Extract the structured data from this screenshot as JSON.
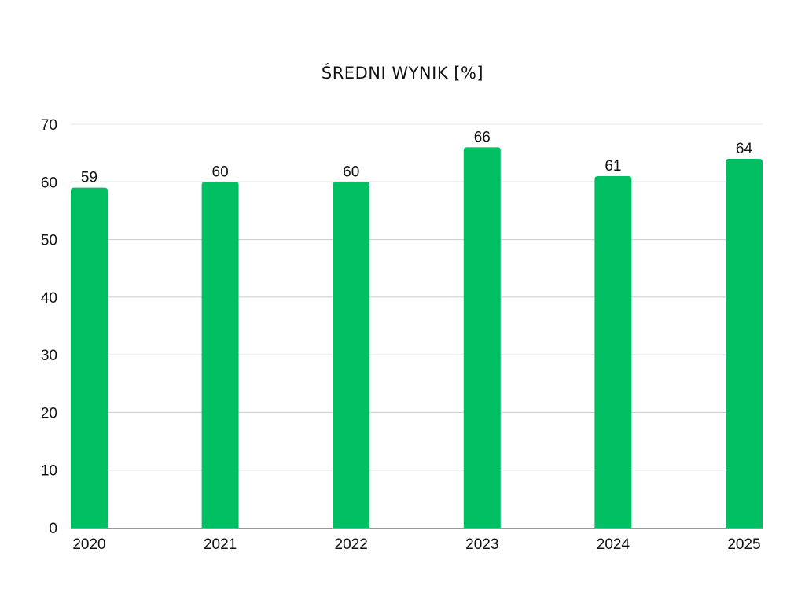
{
  "chart_data": {
    "type": "bar",
    "title": "ŚREDNI WYNIK [%]",
    "xlabel": "",
    "ylabel": "",
    "categories": [
      "2020",
      "2021",
      "2022",
      "2023",
      "2024",
      "2025"
    ],
    "values": [
      59,
      60,
      60,
      66,
      61,
      64
    ],
    "ylim": [
      0,
      70
    ],
    "yticks": [
      0,
      10,
      20,
      30,
      40,
      50,
      60,
      70
    ],
    "grid": true,
    "data_labels": true,
    "legend": "none",
    "bar_color": "#00bf63"
  }
}
